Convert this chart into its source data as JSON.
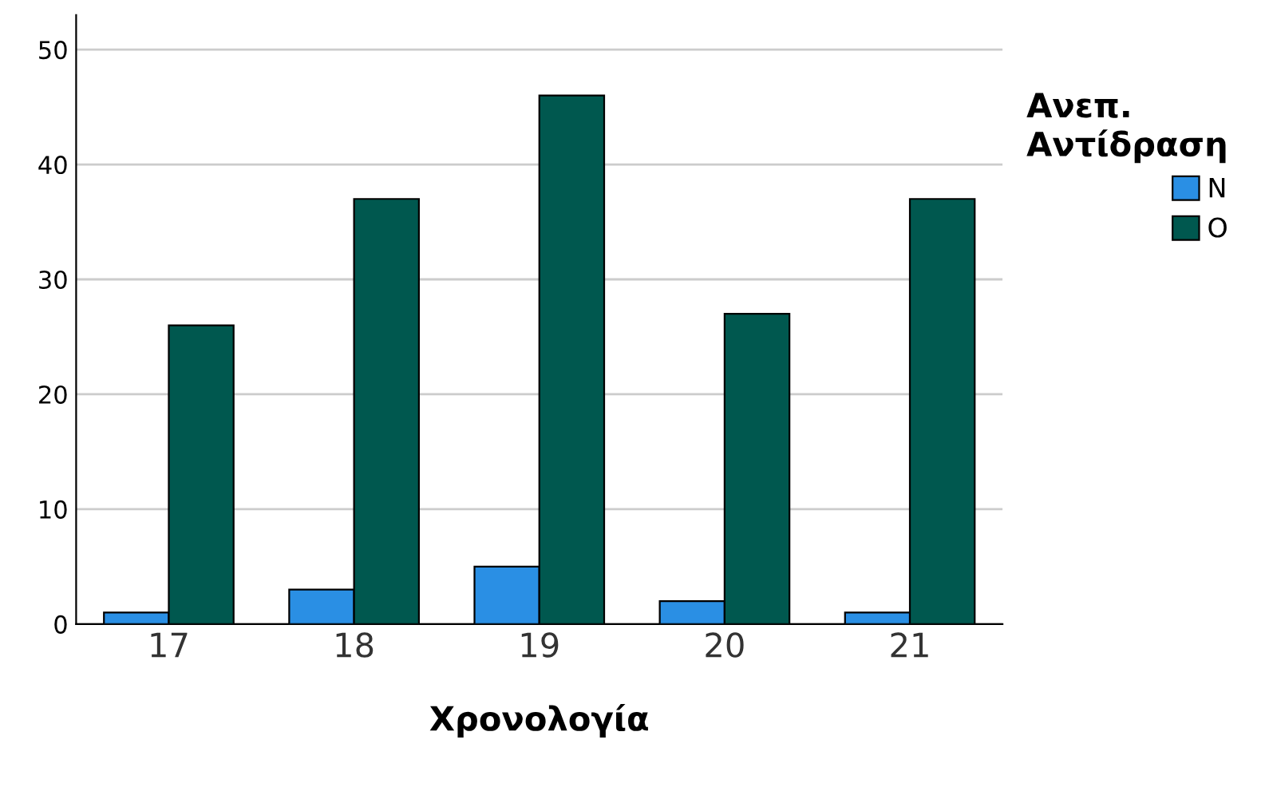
{
  "chart_data": {
    "type": "bar",
    "xlabel": "Χρονολογία",
    "legend_title": "Ανεπ.\nΑντίδραση",
    "categories": [
      "17",
      "18",
      "19",
      "20",
      "21"
    ],
    "series": [
      {
        "name": "N",
        "color": "#2a8fe4",
        "values": [
          1,
          3,
          5,
          2,
          1
        ]
      },
      {
        "name": "O",
        "color": "#00584f",
        "values": [
          26,
          37,
          46,
          27,
          37
        ]
      }
    ],
    "ylim": [
      0,
      53
    ],
    "yticks": [
      0,
      10,
      20,
      30,
      40,
      50
    ],
    "grid": "y",
    "legend": "right"
  }
}
